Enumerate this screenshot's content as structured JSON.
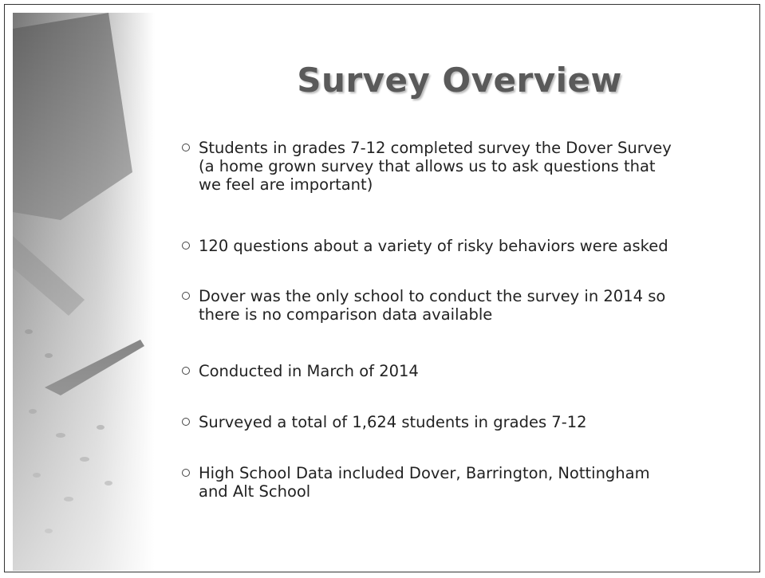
{
  "title": "Survey Overview",
  "bullets": [
    [
      "Students in grades 7-12 completed survey the Dover Survey",
      "(a home grown survey that allows us to ask questions that",
      "we feel are important)"
    ],
    [
      "120 questions about a variety of risky behaviors were asked"
    ],
    [
      "Dover was the only school to conduct the survey in 2014 so",
      "there is no comparison data available"
    ],
    [
      "Conducted in March of 2014"
    ],
    [
      "Surveyed a total of 1,624 students in grades 7-12"
    ],
    [
      "High School Data included Dover, Barrington, Nottingham",
      "and Alt School"
    ]
  ]
}
